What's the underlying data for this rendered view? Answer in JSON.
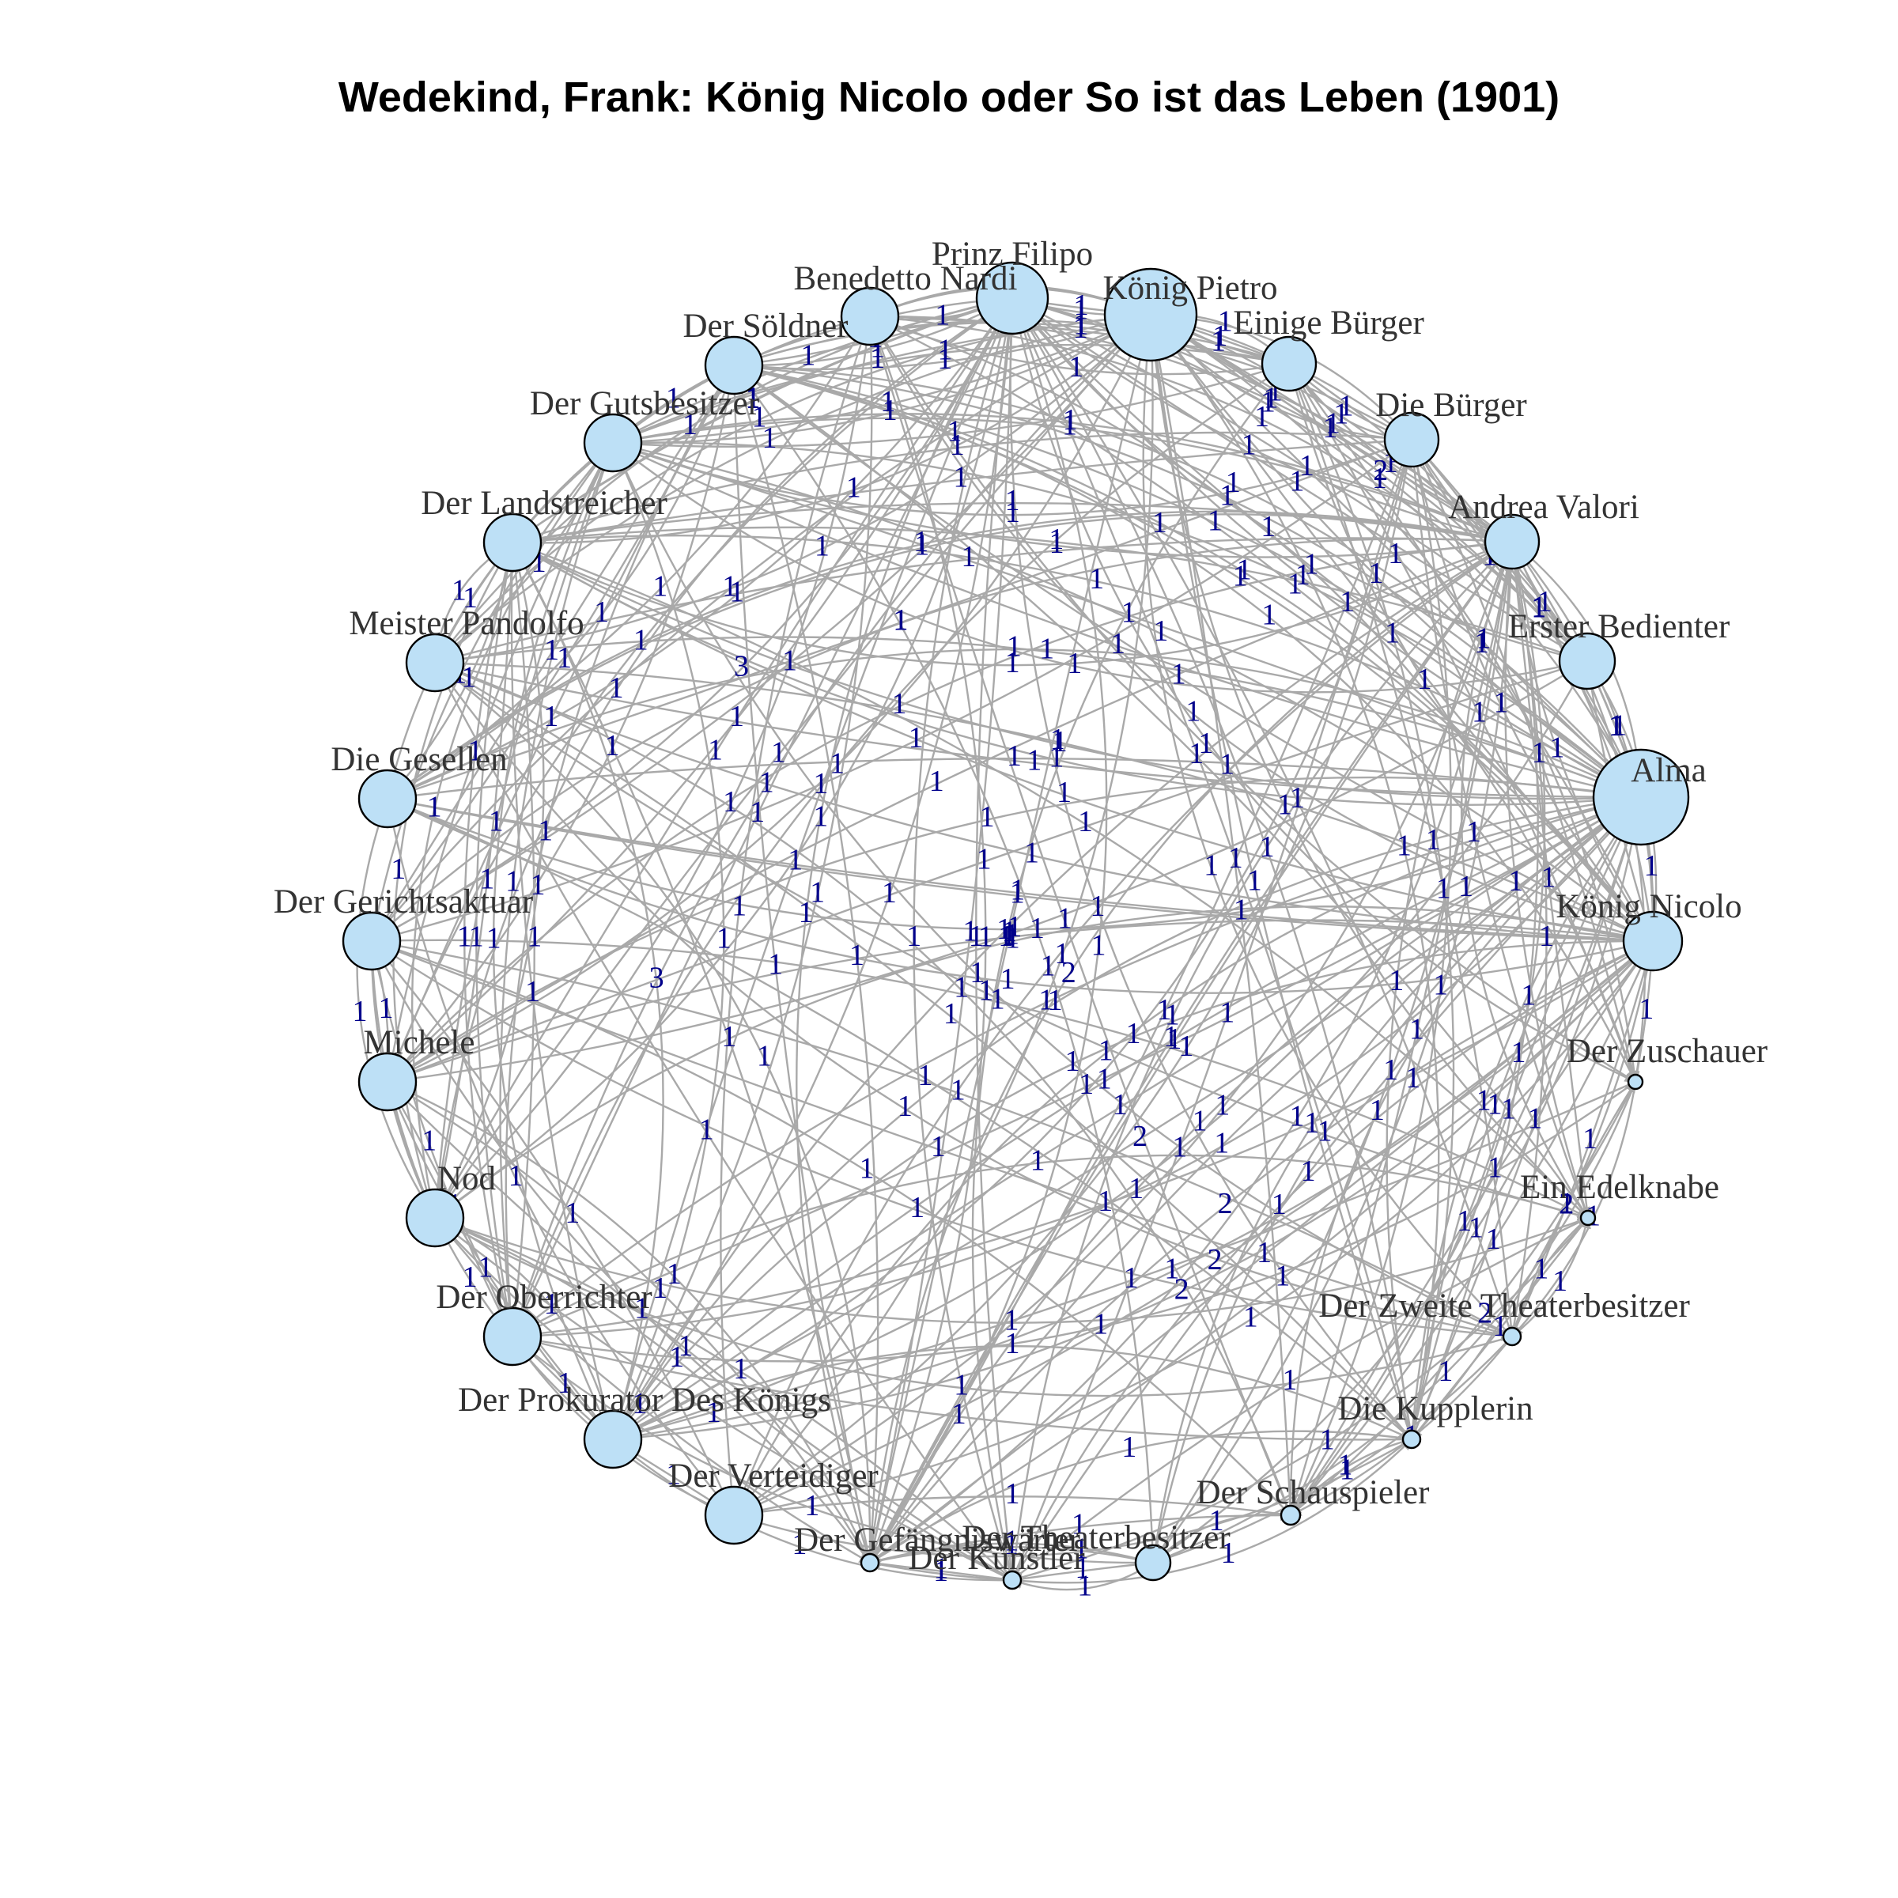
{
  "title": "Wedekind, Frank: König Nicolo oder So ist das Leben (1901)",
  "colors": {
    "node_fill": "#bde0f6",
    "node_stroke": "#000000",
    "edge": "#a9a9a9",
    "edge_label": "#00008b",
    "node_label": "#333333"
  },
  "nodes": [
    {
      "id": "prinz-filipo",
      "label": "Prinz Filipo",
      "weight": 5
    },
    {
      "id": "koenig-pietro",
      "label": "König Pietro",
      "weight": 9
    },
    {
      "id": "einige-buerger",
      "label": "Einige Bürger",
      "weight": 3
    },
    {
      "id": "die-buerger",
      "label": "Die Bürger",
      "weight": 3
    },
    {
      "id": "andrea-valori",
      "label": "Andrea Valori",
      "weight": 3
    },
    {
      "id": "erster-bedienter",
      "label": "Erster Bedienter",
      "weight": 3
    },
    {
      "id": "alma",
      "label": "Alma",
      "weight": 10
    },
    {
      "id": "koenig-nicolo",
      "label": "König Nicolo",
      "weight": 4
    },
    {
      "id": "der-zuschauer",
      "label": "Der Zuschauer",
      "weight": 1
    },
    {
      "id": "ein-edelknabe",
      "label": "Ein Edelknabe",
      "weight": 1
    },
    {
      "id": "der-zweite-theaterbesitzer",
      "label": "Der Zweite Theaterbesitzer",
      "weight": 1
    },
    {
      "id": "die-kupplerin",
      "label": "Die Kupplerin",
      "weight": 1
    },
    {
      "id": "der-schauspieler",
      "label": "Der Schauspieler",
      "weight": 1
    },
    {
      "id": "der-theaterbesitzer",
      "label": "Der Theaterbesitzer",
      "weight": 2
    },
    {
      "id": "der-kuenstler",
      "label": "Der Künstler",
      "weight": 1
    },
    {
      "id": "der-gefaengniswaerter",
      "label": "Der Gefängniswärter",
      "weight": 1
    },
    {
      "id": "der-verteidiger",
      "label": "Der Verteidiger",
      "weight": 4
    },
    {
      "id": "der-prokurator",
      "label": "Der Prokurator Des Königs",
      "weight": 4
    },
    {
      "id": "der-oberrichter",
      "label": "Der Oberrichter",
      "weight": 4
    },
    {
      "id": "nod",
      "label": "Nod",
      "weight": 4
    },
    {
      "id": "michele",
      "label": "Michele",
      "weight": 4
    },
    {
      "id": "der-gerichtsaktuar",
      "label": "Der Gerichtsaktuar",
      "weight": 4
    },
    {
      "id": "die-gesellen",
      "label": "Die Gesellen",
      "weight": 4
    },
    {
      "id": "meister-pandolfo",
      "label": "Meister Pandolfo",
      "weight": 4
    },
    {
      "id": "der-landstreicher",
      "label": "Der Landstreicher",
      "weight": 4
    },
    {
      "id": "der-gutsbesitzer",
      "label": "Der Gutsbesitzer",
      "weight": 4
    },
    {
      "id": "der-soeldner",
      "label": "Der Söldner",
      "weight": 4
    },
    {
      "id": "benedetto-nardi",
      "label": "Benedetto Nardi",
      "weight": 3
    }
  ],
  "edge_labels": [
    "1",
    "1",
    "1",
    "1",
    "1",
    "1",
    "1",
    "1",
    "1",
    "1",
    "1",
    "1",
    "1",
    "1",
    "1",
    "1",
    "1",
    "1",
    "1",
    "1",
    "1",
    "1",
    "1",
    "1",
    "1",
    "2",
    "1",
    "1",
    "1",
    "1",
    "1",
    "1",
    "1",
    "1",
    "1",
    "1",
    "1",
    "1",
    "1",
    "1",
    "1",
    "1",
    "2",
    "1",
    "1",
    "1",
    "1",
    "1",
    "1",
    "1",
    "1",
    "1",
    "1",
    "1",
    "1",
    "1",
    "3",
    "1",
    "1",
    "1",
    "1",
    "1",
    "1",
    "1",
    "1",
    "1",
    "1",
    "1",
    "1",
    "1",
    "1",
    "1",
    "1",
    "1",
    "1",
    "2",
    "1",
    "1",
    "1",
    "1",
    "1",
    "1",
    "1",
    "1",
    "1",
    "1",
    "1",
    "1",
    "1",
    "1",
    "1",
    "1",
    "1",
    "1",
    "1",
    "1",
    "1",
    "1",
    "1",
    "1",
    "1",
    "1",
    "1",
    "1",
    "1",
    "1",
    "1",
    "1",
    "1",
    "1",
    "1",
    "1",
    "1",
    "1",
    "1",
    "2",
    "1",
    "1",
    "1",
    "1",
    "1",
    "1",
    "1",
    "1",
    "1",
    "1",
    "1",
    "1",
    "1",
    "1",
    "1",
    "1",
    "1",
    "1",
    "1",
    "1",
    "1",
    "1",
    "1",
    "1",
    "1",
    "1",
    "1",
    "1",
    "1",
    "1",
    "1",
    "1",
    "1",
    "2",
    "1",
    "1",
    "1",
    "1",
    "1",
    "1",
    "1",
    "1",
    "1",
    "1",
    "1",
    "1",
    "1",
    "1",
    "1",
    "1",
    "1",
    "1",
    "1",
    "1",
    "1",
    "1",
    "1",
    "1",
    "1",
    "1",
    "1",
    "1",
    "1",
    "1",
    "2",
    "1",
    "1",
    "1",
    "1",
    "1",
    "1",
    "1",
    "1",
    "1",
    "1",
    "1",
    "1",
    "1",
    "1",
    "1",
    "1",
    "1",
    "1",
    "1",
    "1",
    "1",
    "1",
    "1",
    "1",
    "1",
    "1",
    "1",
    "1",
    "1",
    "1",
    "1",
    "1",
    "1",
    "1",
    "1",
    "1",
    "1",
    "1",
    "1",
    "1",
    "1",
    "1",
    "1",
    "1",
    "1",
    "1",
    "1",
    "1",
    "2",
    "1",
    "1",
    "1",
    "1",
    "1",
    "1",
    "1",
    "1",
    "1",
    "1",
    "1",
    "1",
    "1",
    "1",
    "1",
    "1",
    "1",
    "1",
    "1",
    "1",
    "1",
    "1",
    "1",
    "1",
    "1",
    "1",
    "1",
    "1",
    "1",
    "1",
    "1",
    "1",
    "1",
    "1",
    "1",
    "1",
    "1",
    "1",
    "1",
    "1",
    "1",
    "1",
    "1",
    "1",
    "1",
    "1",
    "1",
    "1",
    "1",
    "1",
    "1",
    "1",
    "1",
    "1",
    "1",
    "1",
    "1",
    "1",
    "3",
    "1",
    "1",
    "1",
    "1",
    "1",
    "1",
    "1",
    "1",
    "1",
    "1",
    "1",
    "1",
    "1",
    "1",
    "1",
    "1",
    "1",
    "1",
    "1",
    "1",
    "2",
    "1",
    "1",
    "1",
    "1",
    "1",
    "1",
    "1",
    "1",
    "1",
    "1",
    "1",
    "1",
    "1",
    "1",
    "1",
    "1",
    "1",
    "1",
    "1",
    "1",
    "1"
  ]
}
